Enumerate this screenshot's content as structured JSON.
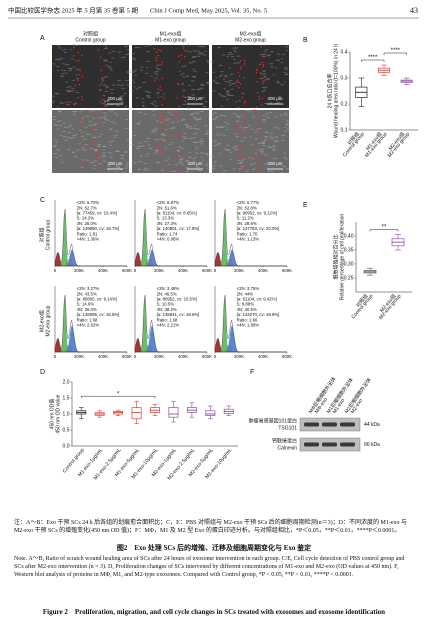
{
  "header": {
    "journal_cn": "中国比较医学杂志 2025 年 5 月第 35 卷第 5 期",
    "journal_en": "Chin J Comp Med, May 2025, Vol. 35, No. 5",
    "page": "43"
  },
  "panel_a": {
    "label": "A",
    "columns": [
      {
        "cn": "对照组",
        "en": "Control group"
      },
      {
        "cn": "M1-exo组",
        "en": "M1-exo group"
      },
      {
        "cn": "M2-exo组",
        "en": "M2-exo group"
      }
    ],
    "scale_bar": "200 μm"
  },
  "panel_c": {
    "label": "C",
    "rows": [
      {
        "cn": "对照组",
        "en": "Control group"
      },
      {
        "cn": "M2-exo组",
        "en": "M2-exo group"
      }
    ],
    "xlim": [
      0,
      600000
    ],
    "xticks": [
      0,
      {
        "value": 200000,
        "label": "200K"
      },
      {
        "value": 400000,
        "label": "400K"
      },
      {
        "value": 600000,
        "label": "600K"
      }
    ],
    "stats": [
      [
        [
          "<2N: 5.70%",
          "2N: 52.7%",
          "[a: 77459, cv: 10.4%]",
          "S: 14.2%",
          "4N: 26.0%",
          "[a: 139890, cv: 18.7%]",
          "Ratio: 1.81",
          ">4N: 1.36%"
        ],
        [
          "<2N: 6.87%",
          "2N: 51.6%",
          "[a: 81104, cv: 8.65%]",
          "S: 13.3%",
          "4N: 27.3%",
          "[a: 140801, cv: 17.8%]",
          "Ratio: 1.74",
          ">4N: 0.96%"
        ],
        [
          "<2N: 5.77%",
          "2N: 52.8%",
          "[a: 80952, cv: 9.12%]",
          "S: 11.2%",
          "4N: 28.6%",
          "[a: 137763, cv: 20.0%]",
          "Ratio: 1.70",
          ">4N: 1.13%"
        ]
      ],
      [
        [
          "<2N: 3.27%",
          "2N: 43.5%",
          "[a: 80800, cv: 9.14%]",
          "S: 14.6%",
          "4N: 36.0%",
          "[a: 136095, cv: 16.5%]",
          "Ratio: 1.68",
          ">4N: 2.62%"
        ],
        [
          "<2N: 3.48%",
          "2N: 46.5%",
          "[a: 80952, cv: 10.5%]",
          "S: 10.5%",
          "4N: 38.2%",
          "[a: 135941, cv: 18.6%]",
          "Ratio: 1.68",
          ">4N: 2.21%"
        ],
        [
          "<2N: 3.75%",
          "2N: 44%",
          "[a: 81104, cv: 9.42%]",
          "S: 9.88%",
          "4N: 40.5%",
          "[a: 134270, cv: 19.9%]",
          "Ratio: 1.66",
          ">4N: 1.89%"
        ]
      ]
    ]
  },
  "panel_f": {
    "label": "F",
    "columns": [
      {
        "cn": "MΦ巨噬细胞外泌体",
        "en": "MΦ-exo"
      },
      {
        "cn": "M1巨噬细胞外泌体",
        "en": "M1-exo"
      },
      {
        "cn": "M2巨噬细胞外泌体",
        "en": "M2-exo"
      }
    ],
    "bands": [
      {
        "cn": "肿瘤易感基因101蛋白",
        "en": "TSG101",
        "size": "44 kDa"
      },
      {
        "cn": "钙联接蛋白",
        "en": "Calnexin",
        "size": "90 kDa"
      }
    ]
  },
  "chart_data": [
    {
      "type": "box",
      "label": "B",
      "y_label": [
        "24 h伤口愈合率",
        "Wound healing area ratio (t=100%) in 24 h"
      ],
      "categories": [
        "Control group",
        "M1-exo group",
        "M2-exo group"
      ],
      "categories_cn": [
        "对照组",
        "M1-exo组",
        "M2-exo组"
      ],
      "colors": [
        "#222222",
        "#d9413b",
        "#8a4fa8"
      ],
      "boxes": [
        {
          "whisker_low": 0.19,
          "q1": 0.225,
          "median": 0.245,
          "q3": 0.265,
          "whisker_high": 0.3
        },
        {
          "whisker_low": 0.31,
          "q1": 0.322,
          "median": 0.33,
          "q3": 0.338,
          "whisker_high": 0.35
        },
        {
          "whisker_low": 0.275,
          "q1": 0.283,
          "median": 0.288,
          "q3": 0.292,
          "whisker_high": 0.3
        }
      ],
      "ylim": [
        0.1,
        0.4
      ],
      "yticks": [
        0.1,
        0.2,
        0.3,
        0.4
      ],
      "annotations": [
        {
          "text": "****",
          "between": [
            0,
            1
          ]
        },
        {
          "text": "****",
          "between": [
            1,
            2
          ]
        }
      ]
    },
    {
      "type": "box",
      "label": "E",
      "y_label": [
        "细胞增殖相对百分比",
        "Relative percentage of cell proliferation"
      ],
      "categories": [
        "Control group",
        "M2-exo group"
      ],
      "categories_cn": [
        "对照组",
        "M2-exo组"
      ],
      "colors": [
        "#555555",
        "#8a4fa8"
      ],
      "boxes": [
        {
          "whisker_low": 0.26,
          "q1": 0.268,
          "median": 0.272,
          "q3": 0.277,
          "whisker_high": 0.285
        },
        {
          "whisker_low": 0.35,
          "q1": 0.365,
          "median": 0.378,
          "q3": 0.39,
          "whisker_high": 0.405
        }
      ],
      "ylim": [
        0.2,
        0.45
      ],
      "yticks": [
        0.25,
        {
          "value": 0.3,
          "label": "0.30"
        },
        0.35,
        {
          "value": 0.4,
          "label": "0.40"
        }
      ],
      "annotations": [
        {
          "text": "**",
          "between": [
            0,
            1
          ]
        }
      ]
    },
    {
      "type": "box",
      "label": "D",
      "y_label": [
        "450 nm OD值",
        "450 nm OD value"
      ],
      "categories": [
        "Control group",
        "M1-exo-1μg/mL",
        "M1-exo-2.5μg/mL",
        "M1-exo-5μg/mL",
        "M1-exo-10μg/mL",
        "M2-exo-1μg/mL",
        "M2-exo-2.5μg/mL",
        "M2-exo-5μg/mL",
        "M2-exo-10μg/mL"
      ],
      "colors": [
        "#222222",
        "#d9413b",
        "#d9413b",
        "#d9413b",
        "#d9413b",
        "#8a4fa8",
        "#8a4fa8",
        "#8a4fa8",
        "#8a4fa8"
      ],
      "boxes": [
        {
          "whisker_low": 0.85,
          "q1": 1.0,
          "median": 1.05,
          "q3": 1.1,
          "whisker_high": 1.2
        },
        {
          "whisker_low": 0.9,
          "q1": 0.96,
          "median": 1.0,
          "q3": 1.04,
          "whisker_high": 1.1
        },
        {
          "whisker_low": 0.95,
          "q1": 1.0,
          "median": 1.05,
          "q3": 1.08,
          "whisker_high": 1.12
        },
        {
          "whisker_low": 0.7,
          "q1": 0.85,
          "median": 1.05,
          "q3": 1.2,
          "whisker_high": 1.4
        },
        {
          "whisker_low": 0.95,
          "q1": 1.05,
          "median": 1.12,
          "q3": 1.2,
          "whisker_high": 1.3
        },
        {
          "whisker_low": 0.75,
          "q1": 0.9,
          "median": 1.0,
          "q3": 1.2,
          "whisker_high": 1.4
        },
        {
          "whisker_low": 0.9,
          "q1": 1.05,
          "median": 1.12,
          "q3": 1.2,
          "whisker_high": 1.35
        },
        {
          "whisker_low": 0.85,
          "q1": 0.95,
          "median": 1.0,
          "q3": 1.1,
          "whisker_high": 1.25
        },
        {
          "whisker_low": 0.95,
          "q1": 1.02,
          "median": 1.08,
          "q3": 1.15,
          "whisker_high": 1.25
        }
      ],
      "ylim": [
        0,
        2
      ],
      "yticks": [
        {
          "value": 0,
          "label": "0.0"
        },
        0.5,
        {
          "value": 1,
          "label": "1.0"
        },
        1.5,
        {
          "value": 2,
          "label": "2.0"
        }
      ],
      "annotations": [
        {
          "text": "*",
          "between": [
            0,
            4
          ]
        }
      ]
    }
  ],
  "caption": {
    "note_cn": "注：A～B：Exo 干预 SCs 24 h 后各组的划痕愈合面积比；C，E：PBS 对照组与 M2-exo 干预 SCs 后的细胞周期检测(n＝3)；D：不同浓度的 M1-exo 与 M2-exo 干预 SCs 的增殖变化(450 nm OD 值)；F：MΦ，M1 及 M2 型 Exo 的蛋白印迹分析。与对照组相比，*P＜0.05，**P＜0.01，****P＜0.0001。",
    "title_cn": "图2　Exo 处理 SCs 后的增殖、迁移及细胞周期变化与 Exo 鉴定",
    "note_en": "Note. A～B, Ratio of scratch wound healing area of SCs after 24 hours of exosome intervention in each group. C/E, Cell cycle detection of PBS control group and SCs after M2-exo intervention (n = 3). D, Proliferation changes of SCs intervened by different concentrations of M1-exo and M2-exo (OD values at 450 nm). F, Western blot analysis of proteins in MΦ, M1, and M2-type exosomes. Compared with Control group, *P < 0.05, **P < 0.01, ****P < 0.0001.",
    "title_en": "Figure 2　Proliferation, migration, and cell cycle changes in SCs treated with exosomes and exosome identification"
  }
}
